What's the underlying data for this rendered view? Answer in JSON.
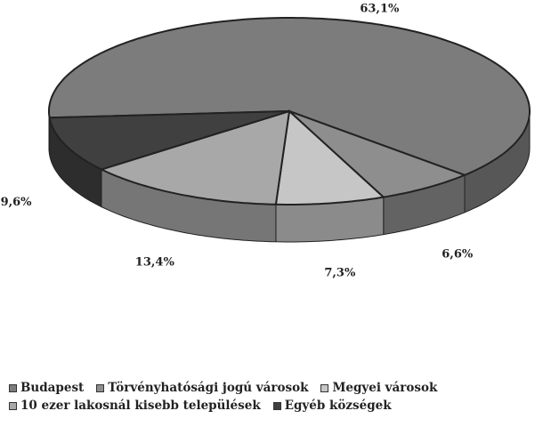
{
  "chart_data": {
    "type": "pie3d",
    "series": [
      {
        "name": "Budapest",
        "color": "#7c7c7c",
        "values": [
          63.1
        ],
        "value_labels": [
          "63,1%"
        ]
      },
      {
        "name": "Törvényhatósági jogú városok",
        "color": "#8e8e8e",
        "values": [
          6.6
        ],
        "value_labels": [
          "6,6%"
        ]
      },
      {
        "name": "Megyei városok",
        "color": "#c6c6c6",
        "values": [
          7.3
        ],
        "value_labels": [
          "7,3%"
        ]
      },
      {
        "name": "10 ezer lakosnál kisebb települések",
        "color": "#a8a8a8",
        "values": [
          13.4
        ],
        "value_labels": [
          "13,4%"
        ]
      },
      {
        "name": "Egyéb községek",
        "color": "#404040",
        "values": [
          9.6
        ],
        "value_labels": [
          "9,6%"
        ]
      }
    ]
  }
}
